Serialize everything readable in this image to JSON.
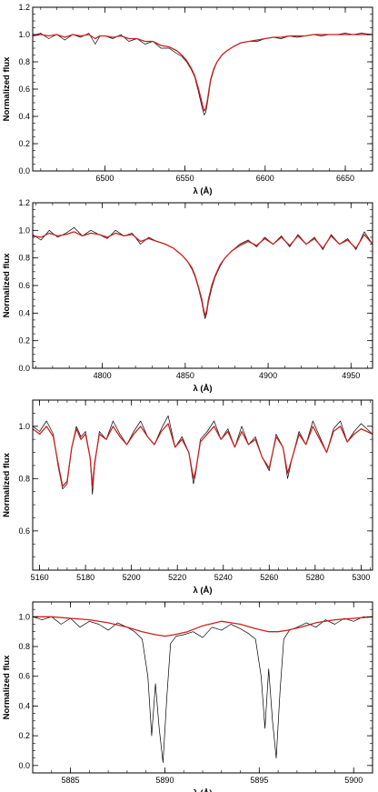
{
  "figure": {
    "panels_count": 4,
    "colors": {
      "observed": "#000000",
      "model": "#cc1f1f",
      "axes": "#000000",
      "background": "#ffffff"
    }
  },
  "chart_data": [
    {
      "type": "line",
      "xlabel": "λ (Å)",
      "ylabel": "Normalized flux",
      "xlim": [
        6455,
        6667
      ],
      "ylim": [
        0.0,
        1.2
      ],
      "xticks": [
        6500,
        6550,
        6600,
        6650
      ],
      "xtick_labels": [
        "6500",
        "6550",
        "6600",
        "6650"
      ],
      "yticks": [
        0.0,
        0.2,
        0.4,
        0.6,
        0.8,
        1.0,
        1.2
      ],
      "ytick_labels": [
        "0.0",
        "0.2",
        "0.4",
        "0.6",
        "0.8",
        "1.0",
        "1.2"
      ],
      "series": [
        {
          "role": "observed",
          "color": "#000000",
          "x": [
            6455,
            6460,
            6465,
            6470,
            6475,
            6480,
            6485,
            6490,
            6494,
            6497,
            6500,
            6505,
            6510,
            6515,
            6520,
            6525,
            6530,
            6535,
            6540,
            6545,
            6548,
            6551,
            6554,
            6556,
            6558,
            6560,
            6561,
            6562,
            6563,
            6564,
            6565,
            6566,
            6568,
            6570,
            6573,
            6576,
            6580,
            6585,
            6590,
            6595,
            6600,
            6605,
            6610,
            6615,
            6620,
            6625,
            6630,
            6635,
            6640,
            6645,
            6650,
            6655,
            6660,
            6667
          ],
          "y": [
            0.99,
            1.01,
            0.97,
            1.0,
            0.96,
            1.0,
            0.98,
            1.01,
            0.93,
            0.99,
            0.99,
            0.97,
            1.0,
            0.95,
            0.97,
            0.93,
            0.95,
            0.9,
            0.9,
            0.86,
            0.84,
            0.8,
            0.74,
            0.69,
            0.6,
            0.5,
            0.45,
            0.41,
            0.43,
            0.5,
            0.58,
            0.66,
            0.74,
            0.8,
            0.85,
            0.88,
            0.91,
            0.94,
            0.95,
            0.95,
            0.97,
            0.98,
            0.97,
            0.99,
            0.98,
            0.99,
            1.0,
            0.99,
            1.0,
            1.0,
            1.01,
            1.0,
            1.01,
            1.0
          ]
        },
        {
          "role": "model",
          "color": "#cc1f1f",
          "x": [
            6455,
            6460,
            6465,
            6470,
            6475,
            6480,
            6485,
            6490,
            6494,
            6497,
            6500,
            6505,
            6510,
            6515,
            6520,
            6525,
            6530,
            6535,
            6540,
            6545,
            6548,
            6551,
            6554,
            6556,
            6558,
            6560,
            6561,
            6562,
            6563,
            6564,
            6565,
            6566,
            6568,
            6570,
            6573,
            6576,
            6580,
            6585,
            6590,
            6595,
            6600,
            6605,
            6610,
            6615,
            6620,
            6625,
            6630,
            6635,
            6640,
            6645,
            6650,
            6655,
            6660,
            6667
          ],
          "y": [
            0.99,
            1.0,
            0.99,
            1.0,
            0.98,
            1.0,
            0.99,
            1.0,
            0.97,
            0.99,
            0.99,
            0.98,
            0.99,
            0.97,
            0.97,
            0.95,
            0.95,
            0.92,
            0.91,
            0.88,
            0.85,
            0.81,
            0.75,
            0.7,
            0.62,
            0.53,
            0.48,
            0.44,
            0.46,
            0.52,
            0.6,
            0.67,
            0.75,
            0.8,
            0.85,
            0.88,
            0.91,
            0.94,
            0.95,
            0.96,
            0.97,
            0.98,
            0.98,
            0.99,
            0.99,
            0.99,
            1.0,
            1.0,
            1.0,
            1.0,
            1.0,
            1.0,
            1.0,
            1.0
          ]
        }
      ]
    },
    {
      "type": "line",
      "xlabel": "λ (Å)",
      "ylabel": "Normalized flux",
      "xlim": [
        4758,
        4963
      ],
      "ylim": [
        0.0,
        1.2
      ],
      "xticks": [
        4800,
        4850,
        4900,
        4950
      ],
      "xtick_labels": [
        "4800",
        "4850",
        "4900",
        "4950"
      ],
      "yticks": [
        0.0,
        0.2,
        0.4,
        0.6,
        0.8,
        1.0,
        1.2
      ],
      "ytick_labels": [
        "0.0",
        "0.2",
        "0.4",
        "0.6",
        "0.8",
        "1.0",
        "1.2"
      ],
      "series": [
        {
          "role": "observed",
          "color": "#000000",
          "x": [
            4758,
            4763,
            4768,
            4773,
            4778,
            4783,
            4788,
            4793,
            4798,
            4803,
            4808,
            4813,
            4818,
            4823,
            4828,
            4833,
            4838,
            4843,
            4848,
            4851,
            4854,
            4856,
            4858,
            4860,
            4861,
            4862,
            4863,
            4864,
            4866,
            4868,
            4871,
            4874,
            4878,
            4883,
            4888,
            4893,
            4898,
            4903,
            4908,
            4913,
            4918,
            4923,
            4928,
            4933,
            4938,
            4943,
            4948,
            4953,
            4958,
            4963
          ],
          "y": [
            0.97,
            0.93,
            1.0,
            0.95,
            0.98,
            1.02,
            0.96,
            1.0,
            0.97,
            0.94,
            1.0,
            0.96,
            0.98,
            0.9,
            0.95,
            0.92,
            0.9,
            0.87,
            0.82,
            0.78,
            0.72,
            0.66,
            0.58,
            0.48,
            0.41,
            0.36,
            0.4,
            0.48,
            0.58,
            0.66,
            0.74,
            0.8,
            0.85,
            0.9,
            0.93,
            0.88,
            0.95,
            0.9,
            0.96,
            0.88,
            0.97,
            0.9,
            0.95,
            0.86,
            0.97,
            0.9,
            0.94,
            0.86,
            0.99,
            0.9
          ]
        },
        {
          "role": "model",
          "color": "#cc1f1f",
          "x": [
            4758,
            4763,
            4768,
            4773,
            4778,
            4783,
            4788,
            4793,
            4798,
            4803,
            4808,
            4813,
            4818,
            4823,
            4828,
            4833,
            4838,
            4843,
            4848,
            4851,
            4854,
            4856,
            4858,
            4860,
            4861,
            4862,
            4863,
            4864,
            4866,
            4868,
            4871,
            4874,
            4878,
            4883,
            4888,
            4893,
            4898,
            4903,
            4908,
            4913,
            4918,
            4923,
            4928,
            4933,
            4938,
            4943,
            4948,
            4953,
            4958,
            4963
          ],
          "y": [
            0.96,
            0.95,
            0.98,
            0.96,
            0.97,
            0.99,
            0.96,
            0.98,
            0.97,
            0.95,
            0.98,
            0.96,
            0.97,
            0.92,
            0.94,
            0.92,
            0.9,
            0.87,
            0.82,
            0.78,
            0.73,
            0.67,
            0.59,
            0.5,
            0.43,
            0.38,
            0.42,
            0.5,
            0.6,
            0.67,
            0.75,
            0.8,
            0.85,
            0.89,
            0.92,
            0.89,
            0.94,
            0.9,
            0.95,
            0.89,
            0.96,
            0.9,
            0.94,
            0.87,
            0.96,
            0.9,
            0.93,
            0.87,
            0.97,
            0.9
          ]
        }
      ]
    },
    {
      "type": "line",
      "xlabel": "λ (Å)",
      "ylabel": "Normalized flux",
      "xlim": [
        5157,
        5305
      ],
      "ylim": [
        0.45,
        1.1
      ],
      "xticks": [
        5160,
        5180,
        5200,
        5220,
        5240,
        5260,
        5280,
        5300
      ],
      "xtick_labels": [
        "5160",
        "5180",
        "5200",
        "5220",
        "5240",
        "5260",
        "5280",
        "5300"
      ],
      "yticks": [
        0.6,
        0.8,
        1.0
      ],
      "ytick_labels": [
        "0.6",
        "0.8",
        "1.0"
      ],
      "series": [
        {
          "role": "observed",
          "color": "#000000",
          "x": [
            5157,
            5160,
            5163,
            5166,
            5168,
            5170,
            5172,
            5174,
            5176,
            5178,
            5180,
            5182,
            5183,
            5184,
            5186,
            5189,
            5192,
            5195,
            5198,
            5201,
            5204,
            5207,
            5210,
            5213,
            5216,
            5219,
            5222,
            5225,
            5227,
            5228,
            5230,
            5233,
            5236,
            5239,
            5242,
            5245,
            5248,
            5251,
            5254,
            5257,
            5260,
            5263,
            5266,
            5268,
            5270,
            5273,
            5276,
            5279,
            5282,
            5285,
            5288,
            5291,
            5294,
            5297,
            5300,
            5305
          ],
          "y": [
            1.0,
            0.98,
            1.02,
            0.97,
            0.85,
            0.76,
            0.78,
            0.92,
            1.0,
            0.96,
            0.98,
            0.88,
            0.74,
            0.85,
            0.98,
            0.95,
            1.02,
            0.97,
            0.93,
            0.98,
            1.02,
            0.96,
            0.93,
            0.99,
            1.04,
            0.92,
            0.96,
            0.9,
            0.78,
            0.82,
            0.95,
            0.98,
            1.02,
            0.95,
            0.99,
            0.92,
            1.0,
            0.93,
            0.96,
            0.88,
            0.83,
            0.97,
            0.92,
            0.8,
            0.88,
            0.98,
            0.93,
            1.02,
            0.96,
            0.9,
            0.99,
            1.02,
            0.94,
            0.98,
            1.01,
            0.97
          ]
        },
        {
          "role": "model",
          "color": "#cc1f1f",
          "x": [
            5157,
            5160,
            5163,
            5166,
            5168,
            5170,
            5172,
            5174,
            5176,
            5178,
            5180,
            5182,
            5183,
            5184,
            5186,
            5189,
            5192,
            5195,
            5198,
            5201,
            5204,
            5207,
            5210,
            5213,
            5216,
            5219,
            5222,
            5225,
            5227,
            5228,
            5230,
            5233,
            5236,
            5239,
            5242,
            5245,
            5248,
            5251,
            5254,
            5257,
            5260,
            5263,
            5266,
            5268,
            5270,
            5273,
            5276,
            5279,
            5282,
            5285,
            5288,
            5291,
            5294,
            5297,
            5300,
            5305
          ],
          "y": [
            0.99,
            0.97,
            1.0,
            0.96,
            0.86,
            0.77,
            0.79,
            0.92,
            0.99,
            0.95,
            0.97,
            0.88,
            0.77,
            0.86,
            0.97,
            0.95,
            1.0,
            0.96,
            0.93,
            0.97,
            1.0,
            0.96,
            0.93,
            0.98,
            1.01,
            0.92,
            0.95,
            0.9,
            0.8,
            0.83,
            0.94,
            0.97,
            1.0,
            0.95,
            0.98,
            0.92,
            0.98,
            0.93,
            0.95,
            0.88,
            0.84,
            0.96,
            0.92,
            0.82,
            0.88,
            0.97,
            0.93,
            1.0,
            0.95,
            0.9,
            0.98,
            1.0,
            0.94,
            0.97,
            0.99,
            0.97
          ]
        }
      ]
    },
    {
      "type": "line",
      "xlabel": "λ (Å)",
      "ylabel": "Normalized flux",
      "xlim": [
        5883,
        5901
      ],
      "ylim": [
        -0.05,
        1.1
      ],
      "xticks": [
        5885,
        5890,
        5895,
        5900
      ],
      "xtick_labels": [
        "5885",
        "5890",
        "5895",
        "5900"
      ],
      "yticks": [
        0.0,
        0.2,
        0.4,
        0.6,
        0.8,
        1.0
      ],
      "ytick_labels": [
        "0.0",
        "0.2",
        "0.4",
        "0.6",
        "0.8",
        "1.0"
      ],
      "series": [
        {
          "role": "observed",
          "color": "#000000",
          "x": [
            5883,
            5883.5,
            5884,
            5884.5,
            5885,
            5885.5,
            5886,
            5886.5,
            5887,
            5887.5,
            5888,
            5888.4,
            5888.8,
            5889.1,
            5889.3,
            5889.5,
            5889.7,
            5889.9,
            5890.1,
            5890.3,
            5890.6,
            5891,
            5891.5,
            5892,
            5892.5,
            5893,
            5893.5,
            5894,
            5894.4,
            5894.8,
            5895.1,
            5895.3,
            5895.5,
            5895.7,
            5895.9,
            5896.1,
            5896.3,
            5896.6,
            5897,
            5897.5,
            5898,
            5898.5,
            5899,
            5899.5,
            5900,
            5900.5,
            5901
          ],
          "y": [
            1.0,
            0.98,
            1.0,
            0.95,
            0.99,
            0.93,
            0.97,
            0.95,
            0.91,
            0.96,
            0.93,
            0.9,
            0.85,
            0.6,
            0.2,
            0.55,
            0.25,
            0.02,
            0.45,
            0.82,
            0.87,
            0.88,
            0.9,
            0.86,
            0.93,
            0.91,
            0.95,
            0.92,
            0.89,
            0.85,
            0.6,
            0.25,
            0.65,
            0.3,
            0.05,
            0.5,
            0.85,
            0.91,
            0.93,
            0.96,
            0.93,
            0.98,
            0.95,
            0.99,
            0.97,
            1.0,
            1.0
          ]
        },
        {
          "role": "model",
          "color": "#cc1f1f",
          "x": [
            5883,
            5884,
            5885,
            5886,
            5887,
            5888,
            5888.8,
            5889.5,
            5890,
            5890.5,
            5891.2,
            5892,
            5893,
            5894,
            5894.8,
            5895.5,
            5896,
            5896.5,
            5897.2,
            5898,
            5899,
            5900,
            5901
          ],
          "y": [
            1.0,
            1.0,
            0.99,
            0.98,
            0.96,
            0.93,
            0.9,
            0.88,
            0.87,
            0.88,
            0.9,
            0.94,
            0.97,
            0.95,
            0.92,
            0.9,
            0.9,
            0.91,
            0.93,
            0.96,
            0.98,
            0.99,
            1.0
          ]
        }
      ]
    }
  ]
}
